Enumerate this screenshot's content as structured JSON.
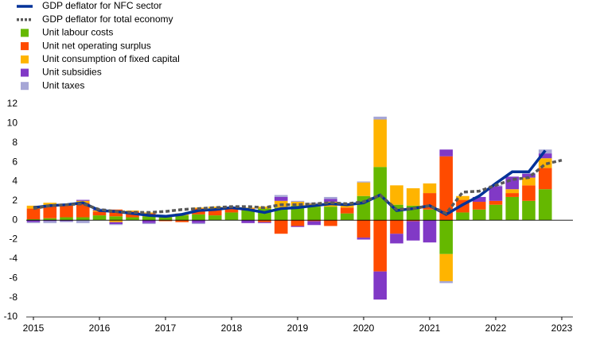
{
  "chart_data": {
    "type": "bar",
    "stacked": true,
    "x": [
      2015,
      2015.25,
      2015.5,
      2015.75,
      2016,
      2016.25,
      2016.5,
      2016.75,
      2017,
      2017.25,
      2017.5,
      2017.75,
      2018,
      2018.25,
      2018.5,
      2018.75,
      2019,
      2019.25,
      2019.5,
      2019.75,
      2020,
      2020.25,
      2020.5,
      2020.75,
      2021,
      2021.25,
      2021.5,
      2021.75,
      2022,
      2022.25,
      2022.5,
      2022.75,
      2023
    ],
    "xlim": [
      2015,
      2023
    ],
    "xticks": [
      2015,
      2016,
      2017,
      2018,
      2019,
      2020,
      2021,
      2022,
      2023
    ],
    "ylim": [
      -10,
      12
    ],
    "yticks": [
      -10,
      -8,
      -6,
      -4,
      -2,
      0,
      2,
      4,
      6,
      8,
      10,
      12
    ],
    "series": [
      {
        "name": "GDP deflator for NFC sector",
        "type": "line",
        "color": "#003299",
        "dashed": false,
        "values": [
          1.3,
          1.5,
          1.6,
          1.8,
          1.0,
          0.9,
          0.7,
          0.5,
          0.4,
          0.6,
          1.0,
          1.1,
          1.3,
          1.1,
          0.8,
          1.2,
          1.3,
          1.5,
          1.7,
          1.6,
          1.8,
          2.6,
          1.0,
          1.2,
          1.5,
          0.6,
          1.6,
          2.5,
          3.8,
          5.0,
          5.0,
          7.2,
          null
        ]
      },
      {
        "name": "GDP deflator for total economy",
        "type": "line",
        "color": "#595959",
        "dashed": true,
        "values": [
          1.2,
          1.5,
          1.6,
          1.7,
          1.1,
          0.9,
          0.8,
          0.8,
          0.9,
          1.1,
          1.2,
          1.3,
          1.4,
          1.4,
          1.3,
          1.6,
          1.6,
          1.7,
          1.8,
          1.7,
          1.9,
          2.6,
          1.1,
          1.2,
          1.5,
          0.7,
          2.9,
          3.0,
          3.6,
          4.2,
          4.4,
          5.8,
          6.2
        ]
      },
      {
        "name": "Unit labour costs",
        "type": "bar",
        "color": "#65b800",
        "values": [
          0.1,
          0.2,
          0.3,
          0.3,
          0.5,
          0.4,
          0.3,
          0.4,
          0.3,
          0.5,
          0.6,
          0.5,
          0.8,
          1.0,
          1.2,
          1.3,
          1.5,
          1.4,
          1.4,
          0.7,
          2.5,
          5.5,
          1.6,
          1.5,
          1.1,
          -3.5,
          0.8,
          1.1,
          1.6,
          2.4,
          2.0,
          3.2,
          null
        ]
      },
      {
        "name": "Unit net operating surplus",
        "type": "bar",
        "color": "#ff4b00",
        "values": [
          1.1,
          1.3,
          1.2,
          1.5,
          0.4,
          0.7,
          0.6,
          0.3,
          -0.1,
          -0.2,
          0.6,
          0.7,
          0.5,
          0.2,
          -0.2,
          -1.4,
          -0.6,
          -0.1,
          -0.6,
          0.6,
          -1.8,
          -5.3,
          -1.4,
          -0.1,
          1.7,
          6.6,
          1.3,
          0.8,
          0.4,
          0.4,
          1.6,
          2.2,
          null
        ]
      },
      {
        "name": "Unit consumption of fixed capital",
        "type": "bar",
        "color": "#ffb400",
        "values": [
          0.3,
          0.3,
          0.2,
          0.2,
          0.1,
          -0.2,
          0.1,
          0.1,
          0.1,
          0.2,
          0.1,
          0.2,
          0.1,
          0.1,
          0.2,
          0.7,
          0.4,
          0.3,
          0.5,
          0.3,
          1.4,
          4.9,
          2.0,
          1.8,
          1.0,
          -2.8,
          0.4,
          0,
          0,
          0.4,
          0.8,
          1.0,
          null
        ]
      },
      {
        "name": "Unit subsidies",
        "type": "bar",
        "color": "#8139c6",
        "values": [
          -0.2,
          -0.1,
          -0.1,
          0.1,
          0.1,
          -0.2,
          0,
          -0.3,
          0,
          0,
          -0.3,
          0,
          0,
          -0.3,
          -0.1,
          0.4,
          -0.1,
          -0.4,
          0.3,
          0.1,
          -0.2,
          -2.9,
          -1.0,
          -2.0,
          -2.3,
          0.7,
          0,
          0.5,
          1.5,
          1.3,
          0.4,
          0.5,
          null
        ]
      },
      {
        "name": "Unit taxes",
        "type": "bar",
        "color": "#a6a6d6",
        "values": [
          -0.1,
          -0.2,
          -0.1,
          -0.3,
          0.1,
          -0.1,
          0,
          -0.1,
          0,
          0,
          -0.1,
          0,
          0,
          0,
          0,
          0.2,
          0.1,
          0.1,
          0.2,
          0,
          0.1,
          0.3,
          0,
          0,
          0,
          -0.2,
          0,
          0,
          0.1,
          0,
          0.1,
          0.4,
          null
        ]
      }
    ]
  }
}
